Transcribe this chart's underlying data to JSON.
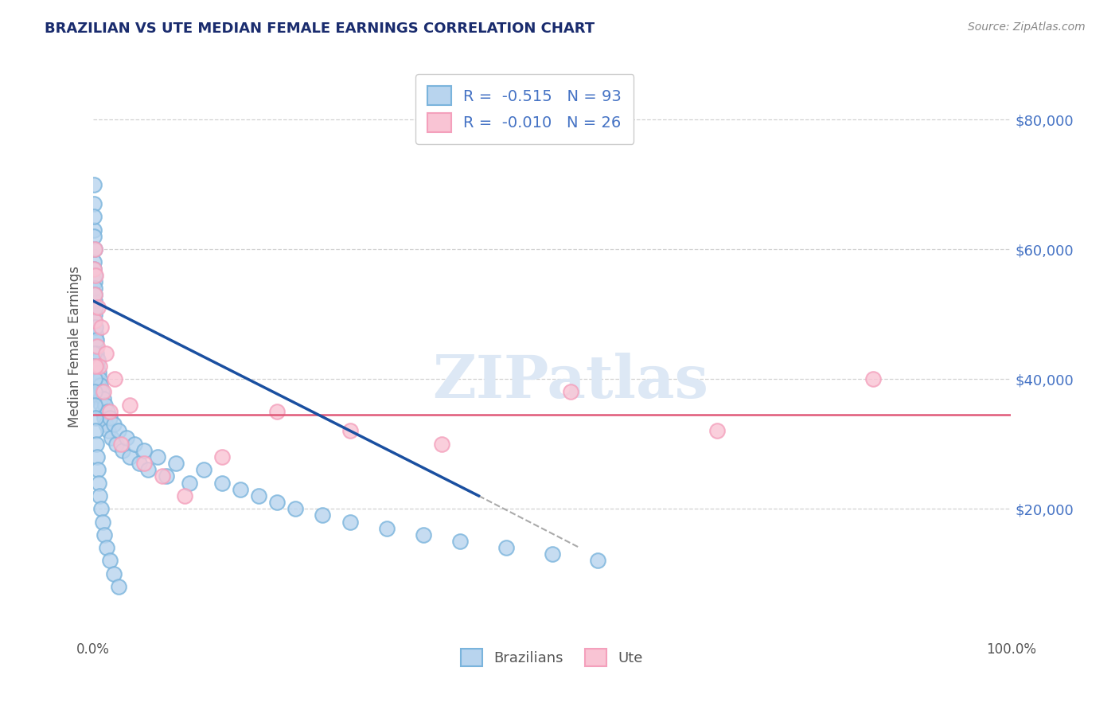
{
  "title": "BRAZILIAN VS UTE MEDIAN FEMALE EARNINGS CORRELATION CHART",
  "source_text": "Source: ZipAtlas.com",
  "ylabel": "Median Female Earnings",
  "xlim": [
    0,
    100
  ],
  "ylim": [
    0,
    90000
  ],
  "yticks": [
    20000,
    40000,
    60000,
    80000
  ],
  "ytick_labels": [
    "$20,000",
    "$40,000",
    "$60,000",
    "$80,000"
  ],
  "xtick_labels": [
    "0.0%",
    "100.0%"
  ],
  "legend_r1": "-0.515",
  "legend_n1": "93",
  "legend_r2": "-0.010",
  "legend_n2": "26",
  "blue_color": "#7ab4dc",
  "pink_color": "#f4a0bc",
  "blue_face": "#b8d4ee",
  "pink_face": "#f9c4d4",
  "line_blue": "#1a4fa0",
  "line_pink": "#e05878",
  "title_color": "#1a2c6e",
  "source_color": "#888888",
  "axis_label_color": "#555555",
  "tick_label_color": "#4472c4",
  "watermark_color": "#dde8f5",
  "background": "#ffffff",
  "grid_color": "#cccccc",
  "brazilians_x": [
    0.05,
    0.07,
    0.08,
    0.09,
    0.1,
    0.1,
    0.11,
    0.12,
    0.13,
    0.14,
    0.15,
    0.16,
    0.17,
    0.18,
    0.19,
    0.2,
    0.21,
    0.22,
    0.23,
    0.24,
    0.25,
    0.27,
    0.29,
    0.31,
    0.34,
    0.37,
    0.4,
    0.44,
    0.48,
    0.53,
    0.58,
    0.63,
    0.68,
    0.74,
    0.8,
    0.87,
    0.94,
    1.02,
    1.1,
    1.2,
    1.3,
    1.4,
    1.52,
    1.65,
    1.8,
    2.0,
    2.2,
    2.5,
    2.8,
    3.2,
    3.6,
    4.0,
    4.5,
    5.0,
    5.5,
    6.0,
    7.0,
    8.0,
    9.0,
    10.5,
    12.0,
    14.0,
    16.0,
    18.0,
    20.0,
    22.0,
    25.0,
    28.0,
    32.0,
    36.0,
    40.0,
    45.0,
    50.0,
    55.0,
    0.06,
    0.09,
    0.12,
    0.15,
    0.18,
    0.22,
    0.27,
    0.33,
    0.4,
    0.48,
    0.58,
    0.7,
    0.85,
    1.0,
    1.2,
    1.5,
    1.8,
    2.2,
    2.8
  ],
  "brazilians_y": [
    67000,
    63000,
    70000,
    65000,
    62000,
    58000,
    57000,
    55000,
    60000,
    56000,
    52000,
    54000,
    50000,
    53000,
    48000,
    49000,
    47000,
    51000,
    46000,
    45000,
    48000,
    44000,
    46000,
    43000,
    41000,
    44000,
    42000,
    40000,
    43000,
    39000,
    41000,
    38000,
    40000,
    37000,
    39000,
    36000,
    38000,
    35000,
    37000,
    34000,
    36000,
    33000,
    35000,
    32000,
    34000,
    31000,
    33000,
    30000,
    32000,
    29000,
    31000,
    28000,
    30000,
    27000,
    29000,
    26000,
    28000,
    25000,
    27000,
    24000,
    26000,
    24000,
    23000,
    22000,
    21000,
    20000,
    19000,
    18000,
    17000,
    16000,
    15000,
    14000,
    13000,
    12000,
    44000,
    42000,
    40000,
    38000,
    36000,
    34000,
    32000,
    30000,
    28000,
    26000,
    24000,
    22000,
    20000,
    18000,
    16000,
    14000,
    12000,
    10000,
    8000
  ],
  "ute_x": [
    0.1,
    0.15,
    0.2,
    0.28,
    0.38,
    0.5,
    0.65,
    0.85,
    1.1,
    1.4,
    1.8,
    2.3,
    3.0,
    4.0,
    5.5,
    7.5,
    10.0,
    14.0,
    20.0,
    28.0,
    38.0,
    52.0,
    68.0,
    85.0,
    0.12,
    0.22
  ],
  "ute_y": [
    57000,
    53000,
    49000,
    56000,
    45000,
    51000,
    42000,
    48000,
    38000,
    44000,
    35000,
    40000,
    30000,
    36000,
    27000,
    25000,
    22000,
    28000,
    35000,
    32000,
    30000,
    38000,
    32000,
    40000,
    60000,
    42000
  ],
  "blue_trendline_x0": 0.04,
  "blue_trendline_x1": 42.0,
  "blue_trendline_y0": 52000,
  "blue_trendline_y1": 22000,
  "blue_dash_x0": 42.0,
  "blue_dash_x1": 53.0,
  "blue_dash_y0": 22000,
  "blue_dash_y1": 14000,
  "pink_trendline_y": 34500,
  "dot_size": 180,
  "dot_linewidth": 1.5
}
